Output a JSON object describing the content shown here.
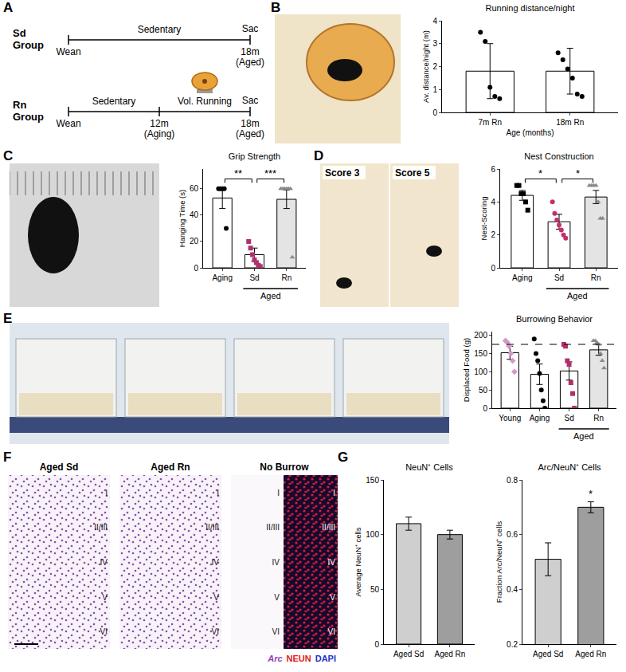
{
  "panel_labels": [
    "A",
    "B",
    "C",
    "D",
    "E",
    "F",
    "G"
  ],
  "diagram": {
    "rows": [
      {
        "group": [
          "Sd",
          "Group"
        ],
        "segments": [
          "Sedentary"
        ],
        "ticks": [
          {
            "below": [
              "Wean"
            ]
          },
          {
            "above": [
              "Sac"
            ],
            "below": [
              "18m",
              "(Aged)"
            ]
          }
        ]
      },
      {
        "group": [
          "Rn",
          "Group"
        ],
        "segments": [
          "Sedentary",
          "Vol. Running"
        ],
        "ticks": [
          {
            "below": [
              "Wean"
            ]
          },
          {
            "below": [
              "12m",
              "(Aging)"
            ]
          },
          {
            "above": [
              "Sac"
            ],
            "below": [
              "18m",
              "(Aged)"
            ]
          }
        ]
      }
    ]
  },
  "photo_labels": [
    "Score 3",
    "Score 5"
  ],
  "micrographs": {
    "panels": [
      "Aged Sd",
      "Aged Rn",
      "No Burrow"
    ],
    "layers": [
      "I",
      "II/III",
      "IV",
      "V",
      "VI"
    ],
    "stain_legend": [
      {
        "text": "Arc",
        "color": "#8e3fb5"
      },
      {
        "text": "NEUN",
        "color": "#e0201b"
      },
      {
        "text": "DAPI",
        "color": "#2433c8"
      }
    ]
  },
  "chart_data": [
    {
      "type": "bar",
      "title": "Running distance/night",
      "x_label": "Age (months)",
      "y_label": "Av. distance/night (m)",
      "categories": [
        "7m Rn",
        "18m Rn"
      ],
      "values": [
        1.8,
        1.8
      ],
      "error": [
        1.2,
        1.0
      ],
      "colors": [
        "#ffffff",
        "#ffffff"
      ],
      "points": [
        {
          "marker": "circle",
          "color": "#000000",
          "values": [
            3.5,
            3.1,
            1.1,
            0.7,
            0.6
          ]
        },
        {
          "marker": "circle",
          "color": "#000000",
          "values": [
            2.6,
            2.3,
            1.9,
            1.5,
            0.8,
            0.7
          ]
        }
      ],
      "ylim": [
        0,
        4
      ],
      "yticks": [
        0,
        1,
        2,
        3,
        4
      ]
    },
    {
      "type": "bar",
      "title": "Grip Strength",
      "y_label": "Hanging Time (s)",
      "categories": [
        "Aging",
        "Sd",
        "Rn"
      ],
      "values": [
        53,
        10,
        52
      ],
      "error": [
        8,
        5,
        7
      ],
      "colors": [
        "#ffffff",
        "#ffffff",
        "#e4e4e4"
      ],
      "points": [
        {
          "marker": "circle",
          "color": "#000000",
          "values": [
            60,
            60,
            60,
            60,
            30
          ]
        },
        {
          "marker": "square",
          "color": "#b0306a",
          "values": [
            20,
            15,
            10,
            6,
            4,
            2,
            1
          ]
        },
        {
          "marker": "triangle-up",
          "color": "#8a8a8a",
          "values": [
            60,
            60,
            60,
            60,
            60,
            60,
            8
          ]
        }
      ],
      "group": {
        "text": "Aged",
        "categories": [
          "Sd",
          "Rn"
        ]
      },
      "significance": [
        {
          "from": "Aging",
          "to": "Sd",
          "text": "**"
        },
        {
          "from": "Sd",
          "to": "Rn",
          "text": "***"
        }
      ],
      "ylim": [
        0,
        75
      ],
      "yticks": [
        0,
        20,
        40,
        60
      ]
    },
    {
      "type": "bar",
      "title": "Nest Construction",
      "y_label": "Nest-Scoring",
      "categories": [
        "Aging",
        "Sd",
        "Rn"
      ],
      "values": [
        4.4,
        2.8,
        4.3
      ],
      "error": [
        0.3,
        0.45,
        0.4
      ],
      "colors": [
        "#ffffff",
        "#ffffff",
        "#e4e4e4"
      ],
      "points": [
        {
          "marker": "square",
          "color": "#000000",
          "values": [
            5,
            5,
            4.5,
            4.5,
            4,
            3.5
          ]
        },
        {
          "marker": "circle",
          "color": "#c2306e",
          "values": [
            4.0,
            3.3,
            2.9,
            2.6,
            2.3,
            2.0,
            1.8
          ]
        },
        {
          "marker": "triangle-up",
          "color": "#8a8a8a",
          "values": [
            5,
            5,
            5,
            5,
            4,
            3,
            3
          ]
        }
      ],
      "group": {
        "text": "Aged",
        "categories": [
          "Sd",
          "Rn"
        ]
      },
      "significance": [
        {
          "from": "Aging",
          "to": "Sd",
          "text": "*"
        },
        {
          "from": "Sd",
          "to": "Rn",
          "text": "*"
        }
      ],
      "ylim": [
        0,
        6
      ],
      "yticks": [
        0,
        2,
        4,
        6
      ]
    },
    {
      "type": "bar",
      "title": "Burrowing Behavior",
      "y_label": "Displaced Food (g)",
      "categories": [
        "Young",
        "Aging",
        "Sd",
        "Rn"
      ],
      "values": [
        152,
        93,
        102,
        160
      ],
      "error": [
        18,
        28,
        25,
        15
      ],
      "colors": [
        "#ffffff",
        "#ffffff",
        "#ffffff",
        "#e4e4e4"
      ],
      "points": [
        {
          "marker": "diamond",
          "color": "#d59ac4",
          "values": [
            185,
            180,
            170,
            150,
            130,
            100
          ]
        },
        {
          "marker": "circle",
          "color": "#000000",
          "values": [
            190,
            150,
            130,
            95,
            50,
            20,
            0
          ]
        },
        {
          "marker": "square",
          "color": "#b0306a",
          "values": [
            175,
            170,
            130,
            120,
            70,
            40,
            0
          ]
        },
        {
          "marker": "triangle-up",
          "color": "#8a8a8a",
          "values": [
            185,
            185,
            180,
            175,
            150,
            130,
            110
          ]
        }
      ],
      "group": {
        "text": "Aged",
        "categories": [
          "Sd",
          "Rn"
        ]
      },
      "reference_line": {
        "value": 175,
        "line_style": "dash"
      },
      "ylim": [
        0,
        210
      ],
      "yticks": [
        0,
        50,
        100,
        150,
        200
      ]
    },
    {
      "type": "bar",
      "title": "NeuN⁺ Cells",
      "y_label": "Average NeuN⁺ cells",
      "categories": [
        "Aged Sd",
        "Aged Rn"
      ],
      "values": [
        110,
        100
      ],
      "error": [
        6,
        4
      ],
      "colors": [
        "#cfcfcf",
        "#9e9e9e"
      ],
      "ylim": [
        0,
        150
      ],
      "yticks": [
        0,
        50,
        100,
        150
      ]
    },
    {
      "type": "bar",
      "title": "Arc/NeuN⁺ Cells",
      "y_label": "Fraction Arc/NeuN⁺ cells",
      "categories": [
        "Aged Sd",
        "Aged Rn"
      ],
      "values": [
        0.51,
        0.7
      ],
      "error": [
        0.06,
        0.02
      ],
      "colors": [
        "#cfcfcf",
        "#9e9e9e"
      ],
      "significance": [
        {
          "at": "Aged Rn",
          "text": "*"
        }
      ],
      "ylim": [
        0.2,
        0.8
      ],
      "yticks": [
        0.2,
        0.4,
        0.6,
        0.8
      ]
    }
  ]
}
